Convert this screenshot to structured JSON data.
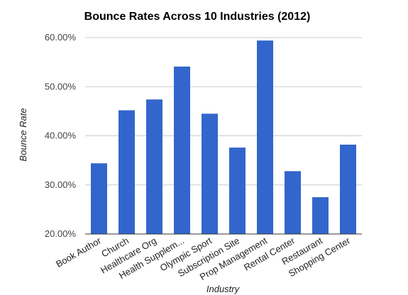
{
  "chart_data": {
    "type": "bar",
    "title": "Bounce Rates Across 10 Industries (2012)",
    "xlabel": "Industry",
    "ylabel": "Bounce Rate",
    "categories": [
      "Book Author",
      "Church",
      "Healthcare Org",
      "Health Supplem...",
      "Olympic Sport",
      "Subscription Site",
      "Prop Management",
      "Rental Center",
      "Restaurant",
      "Shopping Center"
    ],
    "values": [
      34.4,
      45.2,
      47.4,
      54.1,
      44.5,
      37.6,
      59.4,
      32.8,
      27.5,
      38.2
    ],
    "ylim": [
      20,
      60
    ],
    "yticks": [
      20,
      30,
      40,
      50,
      60
    ],
    "ytick_labels": [
      "20.00%",
      "30.00%",
      "40.00%",
      "50.00%",
      "60.00%"
    ],
    "grid": true,
    "legend": "none",
    "bar_color": "#3366cc",
    "grid_color": "#cccccc"
  }
}
